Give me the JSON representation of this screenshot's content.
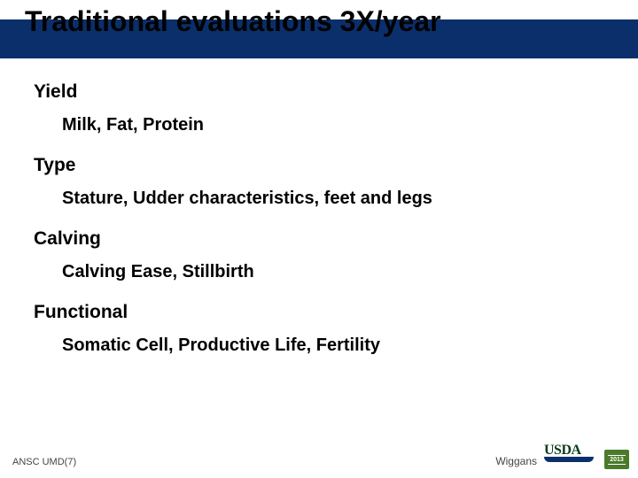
{
  "colors": {
    "header_band": "#0a2f6b",
    "title_text": "#000000",
    "body_text": "#000000",
    "footer_text": "#444444",
    "usda_text": "#0a3d1a",
    "usda_bar": "#0a2f6b",
    "year_badge_bg": "#4a7a2a",
    "year_badge_text": "#ffffff",
    "background": "#ffffff"
  },
  "typography": {
    "title_fontsize": 32,
    "lvl1_fontsize": 21,
    "lvl2_fontsize": 20,
    "footer_fontsize": 11
  },
  "title": "Traditional evaluations 3X/year",
  "content": {
    "items": [
      {
        "heading": "Yield",
        "sub": "Milk, Fat, Protein"
      },
      {
        "heading": "Type",
        "sub": "Stature, Udder characteristics, feet and legs"
      },
      {
        "heading": "Calving",
        "sub": "Calving Ease, Stillbirth"
      },
      {
        "heading": "Functional",
        "sub": "Somatic Cell, Productive Life, Fertility"
      }
    ]
  },
  "footer": {
    "left": "ANSC UMD(7)",
    "right_name": "Wiggans",
    "logo_text": "USDA",
    "year": "2013"
  }
}
